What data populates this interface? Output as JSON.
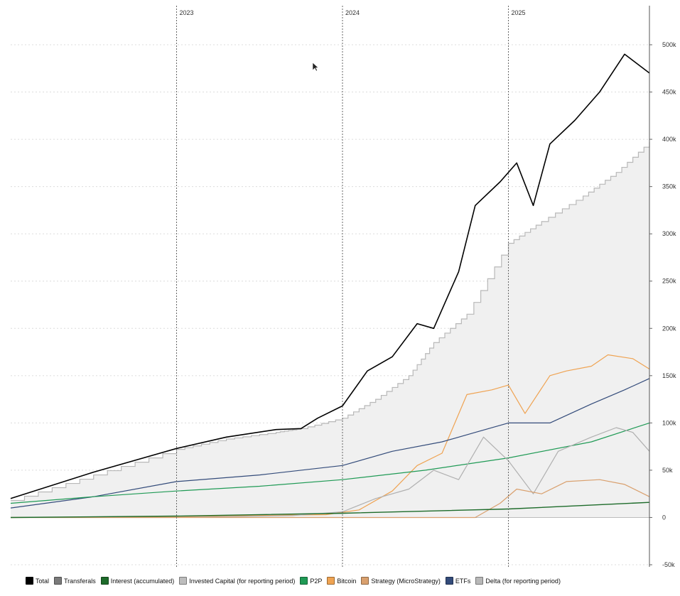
{
  "chart_data": {
    "type": "line",
    "title": "",
    "x_range": [
      2022.0,
      2025.85
    ],
    "x_year_markers": [
      {
        "label": "2023",
        "value": 2023.0
      },
      {
        "label": "2024",
        "value": 2024.0
      },
      {
        "label": "2025",
        "value": 2025.0
      }
    ],
    "ylim": [
      -50000,
      525000
    ],
    "y_ticks": [
      {
        "value": -50000,
        "label": "-50k"
      },
      {
        "value": 0,
        "label": "0"
      },
      {
        "value": 50000,
        "label": "50k"
      },
      {
        "value": 100000,
        "label": "100k"
      },
      {
        "value": 150000,
        "label": "150k"
      },
      {
        "value": 200000,
        "label": "200k"
      },
      {
        "value": 250000,
        "label": "250k"
      },
      {
        "value": 300000,
        "label": "300k"
      },
      {
        "value": 350000,
        "label": "350k"
      },
      {
        "value": 400000,
        "label": "400k"
      },
      {
        "value": 450000,
        "label": "450k"
      },
      {
        "value": 500000,
        "label": "500k"
      }
    ],
    "series": [
      {
        "name": "Invested Capital (for reporting period)",
        "color": "#b8b8b8",
        "fill": "#f0f0f0",
        "kind": "area-step",
        "x": [
          2022.0,
          2022.5,
          2023.0,
          2023.3,
          2023.6,
          2023.75,
          2024.0,
          2024.2,
          2024.4,
          2024.55,
          2024.75,
          2025.0,
          2025.2,
          2025.45,
          2025.65,
          2025.85
        ],
        "y": [
          18000,
          45000,
          72000,
          83000,
          90000,
          94000,
          105000,
          125000,
          150000,
          185000,
          215000,
          290000,
          313000,
          340000,
          365000,
          397000
        ]
      },
      {
        "name": "Total",
        "color": "#000000",
        "kind": "line",
        "width": 1.6,
        "x": [
          2022.0,
          2022.5,
          2023.0,
          2023.3,
          2023.6,
          2023.75,
          2023.85,
          2024.0,
          2024.15,
          2024.3,
          2024.45,
          2024.55,
          2024.7,
          2024.8,
          2024.95,
          2025.05,
          2025.15,
          2025.25,
          2025.4,
          2025.55,
          2025.7,
          2025.85
        ],
        "y": [
          20000,
          48000,
          73000,
          85000,
          93000,
          94000,
          105000,
          118000,
          155000,
          170000,
          205000,
          200000,
          260000,
          330000,
          355000,
          375000,
          330000,
          395000,
          420000,
          450000,
          490000,
          470000
        ]
      },
      {
        "name": "Bitcoin",
        "color": "#efa352",
        "kind": "line",
        "width": 1.2,
        "x": [
          2022.0,
          2023.0,
          2023.9,
          2024.1,
          2024.3,
          2024.45,
          2024.6,
          2024.75,
          2024.9,
          2025.0,
          2025.1,
          2025.25,
          2025.35,
          2025.5,
          2025.6,
          2025.75,
          2025.85
        ],
        "y": [
          0,
          1000,
          3000,
          8000,
          28000,
          55000,
          68000,
          130000,
          135000,
          140000,
          110000,
          150000,
          155000,
          160000,
          172000,
          168000,
          157000
        ]
      },
      {
        "name": "ETFs",
        "color": "#334b7a",
        "kind": "line",
        "width": 1.2,
        "x": [
          2022.0,
          2022.5,
          2023.0,
          2023.5,
          2024.0,
          2024.3,
          2024.6,
          2024.8,
          2025.0,
          2025.25,
          2025.5,
          2025.7,
          2025.85
        ],
        "y": [
          10000,
          22000,
          38000,
          45000,
          55000,
          70000,
          80000,
          90000,
          100000,
          100000,
          120000,
          135000,
          147000
        ]
      },
      {
        "name": "P2P",
        "color": "#1f9a55",
        "kind": "line",
        "width": 1.2,
        "x": [
          2022.0,
          2022.5,
          2023.0,
          2023.5,
          2024.0,
          2024.5,
          2025.0,
          2025.5,
          2025.85
        ],
        "y": [
          15000,
          22000,
          28000,
          33000,
          40000,
          50000,
          63000,
          80000,
          100000
        ]
      },
      {
        "name": "Delta (for reporting period)",
        "color": "#b0b0b0",
        "kind": "line",
        "width": 1.2,
        "x": [
          2022.0,
          2023.0,
          2023.7,
          2024.0,
          2024.2,
          2024.4,
          2024.55,
          2024.7,
          2024.85,
          2025.0,
          2025.15,
          2025.3,
          2025.5,
          2025.65,
          2025.75,
          2025.85
        ],
        "y": [
          0,
          0,
          2000,
          6000,
          20000,
          30000,
          50000,
          40000,
          85000,
          60000,
          25000,
          70000,
          85000,
          95000,
          90000,
          70000
        ]
      },
      {
        "name": "Strategy (MicroStrategy)",
        "color": "#d9a06e",
        "kind": "line",
        "width": 1.2,
        "x": [
          2022.0,
          2024.5,
          2024.8,
          2024.95,
          2025.05,
          2025.2,
          2025.35,
          2025.55,
          2025.7,
          2025.85
        ],
        "y": [
          0,
          0,
          0,
          15000,
          30000,
          25000,
          38000,
          40000,
          35000,
          22000
        ]
      },
      {
        "name": "Interest (accumulated)",
        "color": "#1d6b2a",
        "kind": "line",
        "width": 1.4,
        "x": [
          2022.0,
          2023.0,
          2024.0,
          2025.0,
          2025.85
        ],
        "y": [
          0,
          1500,
          4500,
          9000,
          16000
        ]
      }
    ],
    "legend": [
      {
        "label": "Total",
        "color": "#000000"
      },
      {
        "label": "Transferals",
        "color": "#7a7a7a"
      },
      {
        "label": "Interest (accumulated)",
        "color": "#1d6b2a"
      },
      {
        "label": "Invested Capital (for reporting period)",
        "color": "#bdbdbd"
      },
      {
        "label": "P2P",
        "color": "#1f9a55"
      },
      {
        "label": "Bitcoin",
        "color": "#efa352"
      },
      {
        "label": "Strategy (MicroStrategy)",
        "color": "#d9a06e"
      },
      {
        "label": "ETFs",
        "color": "#334b7a"
      },
      {
        "label": "Delta (for reporting period)",
        "color": "#b8b8b8"
      }
    ],
    "legend_position": "bottom",
    "grid": true
  }
}
